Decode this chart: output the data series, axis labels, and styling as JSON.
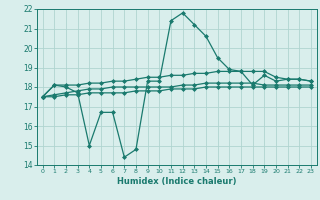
{
  "xlabel": "Humidex (Indice chaleur)",
  "x": [
    0,
    1,
    2,
    3,
    4,
    5,
    6,
    7,
    8,
    9,
    10,
    11,
    12,
    13,
    14,
    15,
    16,
    17,
    18,
    19,
    20,
    21,
    22,
    23
  ],
  "line1": [
    17.5,
    18.1,
    18.0,
    17.7,
    15.0,
    16.7,
    16.7,
    14.4,
    14.8,
    18.3,
    18.3,
    21.4,
    21.8,
    21.2,
    20.6,
    19.5,
    18.9,
    18.8,
    18.1,
    18.6,
    18.3,
    18.4,
    18.4,
    18.3
  ],
  "line2": [
    17.5,
    18.1,
    18.1,
    18.1,
    18.2,
    18.2,
    18.3,
    18.3,
    18.4,
    18.5,
    18.5,
    18.6,
    18.6,
    18.7,
    18.7,
    18.8,
    18.8,
    18.8,
    18.8,
    18.8,
    18.5,
    18.4,
    18.4,
    18.3
  ],
  "line3": [
    17.5,
    17.6,
    17.7,
    17.8,
    17.9,
    17.9,
    18.0,
    18.0,
    18.0,
    18.0,
    18.0,
    18.0,
    18.1,
    18.1,
    18.2,
    18.2,
    18.2,
    18.2,
    18.2,
    18.1,
    18.1,
    18.1,
    18.1,
    18.1
  ],
  "line4": [
    17.5,
    17.5,
    17.6,
    17.6,
    17.7,
    17.7,
    17.7,
    17.7,
    17.8,
    17.8,
    17.8,
    17.9,
    17.9,
    17.9,
    18.0,
    18.0,
    18.0,
    18.0,
    18.0,
    18.0,
    18.0,
    18.0,
    18.0,
    18.0
  ],
  "line_color": "#1a7a6e",
  "bg_color": "#d9eeec",
  "grid_color": "#b0d4d0",
  "ylim": [
    14,
    22
  ],
  "yticks": [
    14,
    15,
    16,
    17,
    18,
    19,
    20,
    21,
    22
  ],
  "marker": "D",
  "marker_size": 2,
  "linewidth": 0.9
}
